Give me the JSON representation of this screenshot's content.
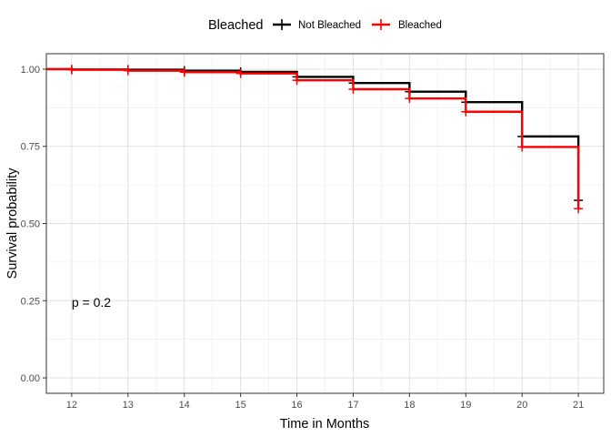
{
  "chart_data": {
    "type": "line",
    "subtype": "kaplan-meier-step",
    "xlabel": "Time in Months",
    "ylabel": "Survival probability",
    "xlim": [
      11.55,
      21.45
    ],
    "ylim": [
      -0.05,
      1.05
    ],
    "x_ticks": [
      12,
      13,
      14,
      15,
      16,
      17,
      18,
      19,
      20,
      21
    ],
    "x_tick_labels": [
      "12",
      "13",
      "14",
      "15",
      "16",
      "17",
      "18",
      "19",
      "20",
      "21"
    ],
    "y_ticks": [
      0,
      0.25,
      0.5,
      0.75,
      1.0
    ],
    "y_tick_labels": [
      "0.00",
      "0.25",
      "0.50",
      "0.75",
      "1.00"
    ],
    "grid": true,
    "legend": {
      "title": "Bleached",
      "position": "top",
      "entries": [
        "Not Bleached",
        "Bleached"
      ]
    },
    "annotation": {
      "text": "p = 0.2",
      "x": 12,
      "y": 0.245
    },
    "series": [
      {
        "name": "Not Bleached",
        "color": "#000000",
        "steps": [
          [
            11.55,
            1.0
          ],
          [
            12,
            0.999
          ],
          [
            13,
            0.998
          ],
          [
            14,
            0.995
          ],
          [
            15,
            0.991
          ],
          [
            16,
            0.975
          ],
          [
            17,
            0.955
          ],
          [
            18,
            0.927
          ],
          [
            19,
            0.893
          ],
          [
            20,
            0.782
          ],
          [
            21,
            0.575
          ]
        ],
        "censor_marks": [
          [
            12,
            0.999
          ],
          [
            13,
            0.998
          ],
          [
            14,
            0.995
          ],
          [
            15,
            0.991
          ],
          [
            16,
            0.975
          ],
          [
            17,
            0.955
          ],
          [
            18,
            0.927
          ],
          [
            19,
            0.893
          ],
          [
            20,
            0.782
          ],
          [
            21,
            0.575
          ]
        ]
      },
      {
        "name": "Bleached",
        "color": "#ff0000",
        "steps": [
          [
            11.55,
            1.0
          ],
          [
            12,
            0.998
          ],
          [
            13,
            0.995
          ],
          [
            14,
            0.99
          ],
          [
            15,
            0.986
          ],
          [
            16,
            0.964
          ],
          [
            17,
            0.935
          ],
          [
            18,
            0.905
          ],
          [
            19,
            0.862
          ],
          [
            20,
            0.748
          ],
          [
            21,
            0.548
          ]
        ],
        "censor_marks": [
          [
            12,
            0.998
          ],
          [
            13,
            0.995
          ],
          [
            14,
            0.99
          ],
          [
            15,
            0.986
          ],
          [
            16,
            0.964
          ],
          [
            17,
            0.935
          ],
          [
            18,
            0.905
          ],
          [
            19,
            0.862
          ],
          [
            20,
            0.748
          ],
          [
            21,
            0.548
          ]
        ]
      }
    ]
  }
}
